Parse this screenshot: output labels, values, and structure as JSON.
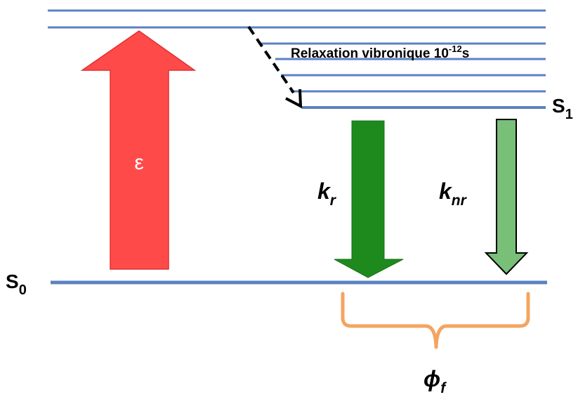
{
  "diagram": {
    "labels": {
      "s0": "S",
      "s0_sub": "0",
      "s1": "S",
      "s1_sub": "1",
      "epsilon": "ε",
      "kr": "k",
      "kr_sub": "r",
      "knr": "k",
      "knr_sub": "nr",
      "relaxation": "Relaxation vibronique 10",
      "relaxation_exp": "-12",
      "relaxation_unit": "s",
      "phi": "ϕ",
      "phi_sub": "f"
    },
    "colors": {
      "level_line": "#5b82c0",
      "excitation_arrow": "#ff4a4a",
      "radiative_arrow": "#1e8a1e",
      "nonradiative_arrow": "#78bf78",
      "brace": "#f4a460"
    }
  }
}
